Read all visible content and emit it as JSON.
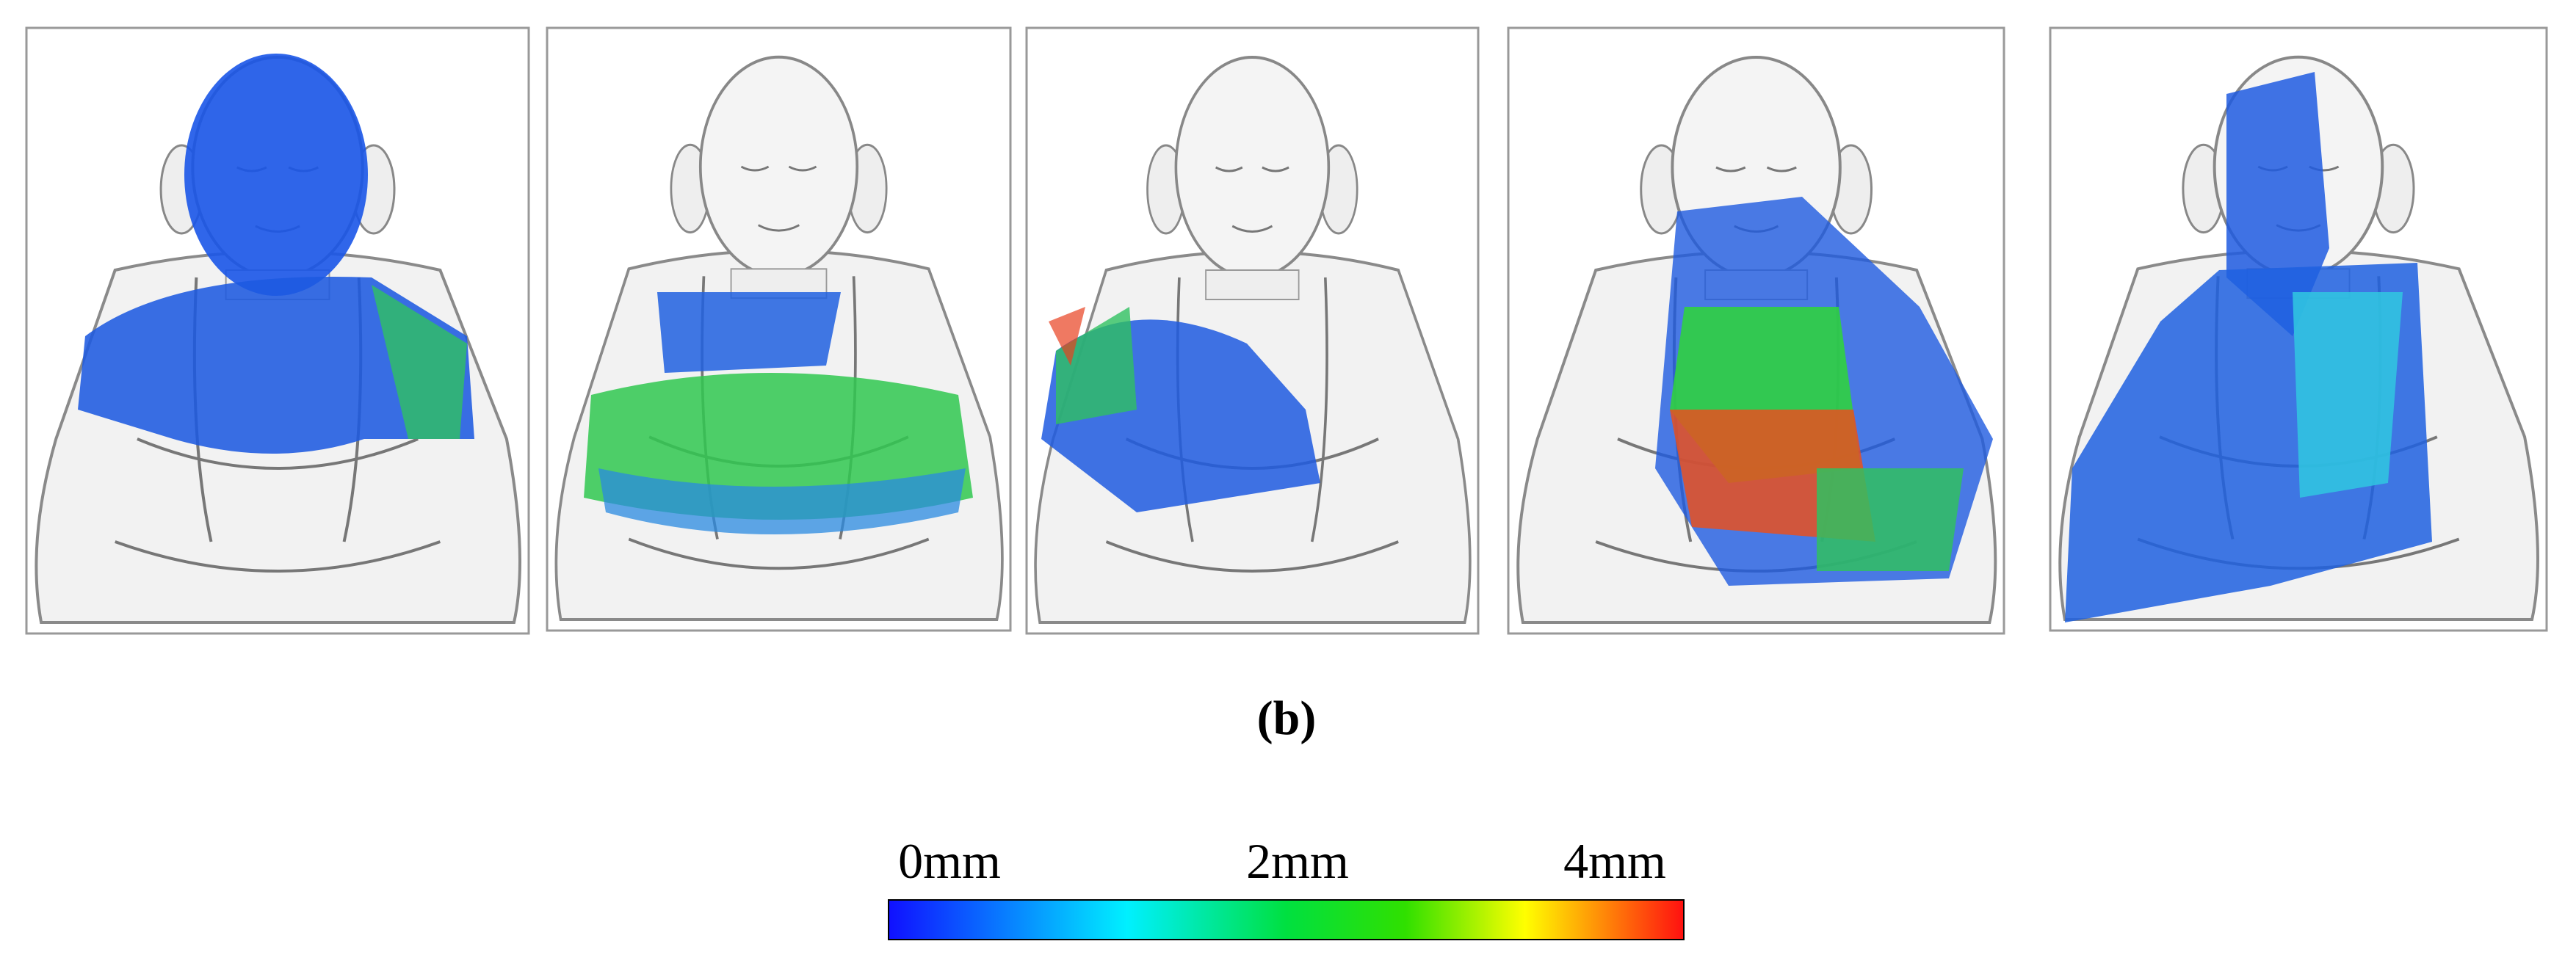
{
  "figure": {
    "caption": "(b)",
    "colorbar": {
      "labels": [
        "0mm",
        "2mm",
        "4mm"
      ]
    }
  }
}
